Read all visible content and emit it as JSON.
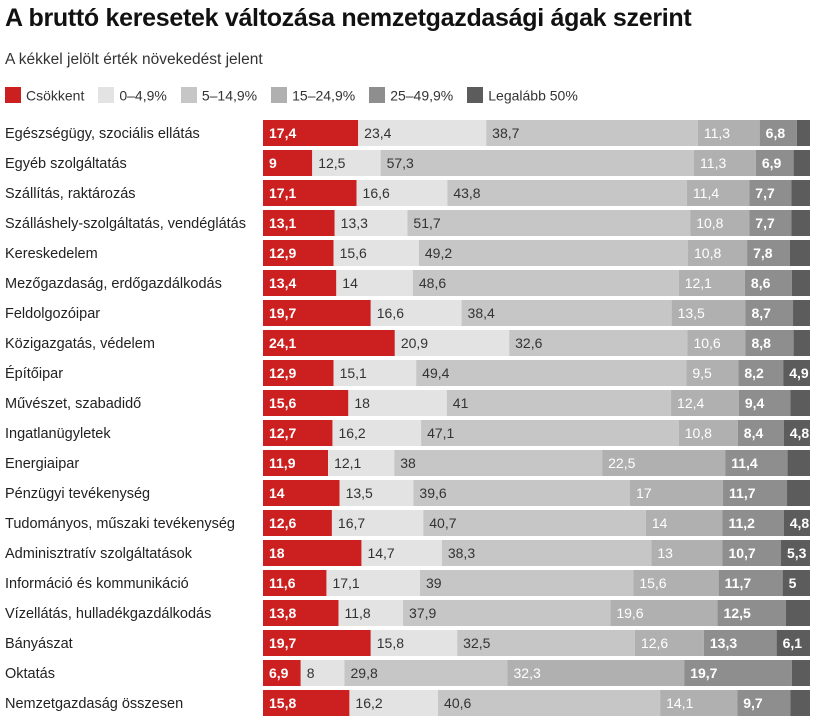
{
  "chart_data": {
    "type": "bar",
    "orientation": "horizontal",
    "stacked": true,
    "normalized": true,
    "title": "A bruttó keresetek változása nemzetgazdasági ágak szerint",
    "subtitle": "A kékkel jelölt érték növekedést jelent",
    "legend_position": "top-left",
    "categories": [
      "Egészségügy, szociális ellátás",
      "Egyéb szolgáltatás",
      "Szállítás, raktározás",
      "Szálláshely-szolgáltatás, vendéglátás",
      "Kereskedelem",
      "Mezőgazdaság, erdőgazdálkodás",
      "Feldolgozóipar",
      "Közigazgatás, védelem",
      "Építőipar",
      "Művészet, szabadidő",
      "Ingatlanügyletek",
      "Energiaipar",
      "Pénzügyi tevékenység",
      "Tudományos, műszaki tevékenység",
      "Adminisztratív szolgáltatások",
      "Információ és kommunikáció",
      "Vízellátás, hulladékgazdálkodás",
      "Bányászat",
      "Oktatás",
      "Nemzetgazdaság összesen"
    ],
    "series": [
      {
        "name": "Csökkent",
        "color": "#cc1f1f",
        "values": [
          17.4,
          9,
          17.1,
          13.1,
          12.9,
          13.4,
          19.7,
          24.1,
          12.9,
          15.6,
          12.7,
          11.9,
          14,
          12.6,
          18,
          11.6,
          13.8,
          19.7,
          6.9,
          15.8
        ]
      },
      {
        "name": "0–4,9%",
        "color": "#e3e3e3",
        "values": [
          23.4,
          12.5,
          16.6,
          13.3,
          15.6,
          14,
          16.6,
          20.9,
          15.1,
          18,
          16.2,
          12.1,
          13.5,
          16.7,
          14.7,
          17.1,
          11.8,
          15.8,
          8,
          16.2
        ]
      },
      {
        "name": "5–14,9%",
        "color": "#c6c6c6",
        "values": [
          38.7,
          57.3,
          43.8,
          51.7,
          49.2,
          48.6,
          38.4,
          32.6,
          49.4,
          41,
          47.1,
          38,
          39.6,
          40.7,
          38.3,
          39,
          37.9,
          32.5,
          29.8,
          40.6
        ]
      },
      {
        "name": "15–24,9%",
        "color": "#b0b0b0",
        "values": [
          11.3,
          11.3,
          11.4,
          10.8,
          10.8,
          12.1,
          13.5,
          10.6,
          9.5,
          12.4,
          10.8,
          22.5,
          17,
          14,
          13,
          15.6,
          19.6,
          12.6,
          32.3,
          14.1
        ]
      },
      {
        "name": "25–49,9%",
        "color": "#8e8e8e",
        "values": [
          6.8,
          6.9,
          7.7,
          7.7,
          7.8,
          8.6,
          8.7,
          8.8,
          8.2,
          9.4,
          8.4,
          11.4,
          11.7,
          11.2,
          10.7,
          11.7,
          12.5,
          13.3,
          19.7,
          9.7
        ]
      },
      {
        "name": "Legalább 50%",
        "color": "#5c5c5c",
        "values": [
          2.4,
          3.0,
          3.4,
          3.4,
          3.7,
          3.3,
          3.1,
          3.0,
          4.9,
          3.6,
          4.8,
          4.1,
          4.2,
          4.8,
          5.3,
          5.0,
          4.4,
          6.1,
          3.3,
          3.6
        ]
      }
    ],
    "value_label_threshold": 4.5
  }
}
